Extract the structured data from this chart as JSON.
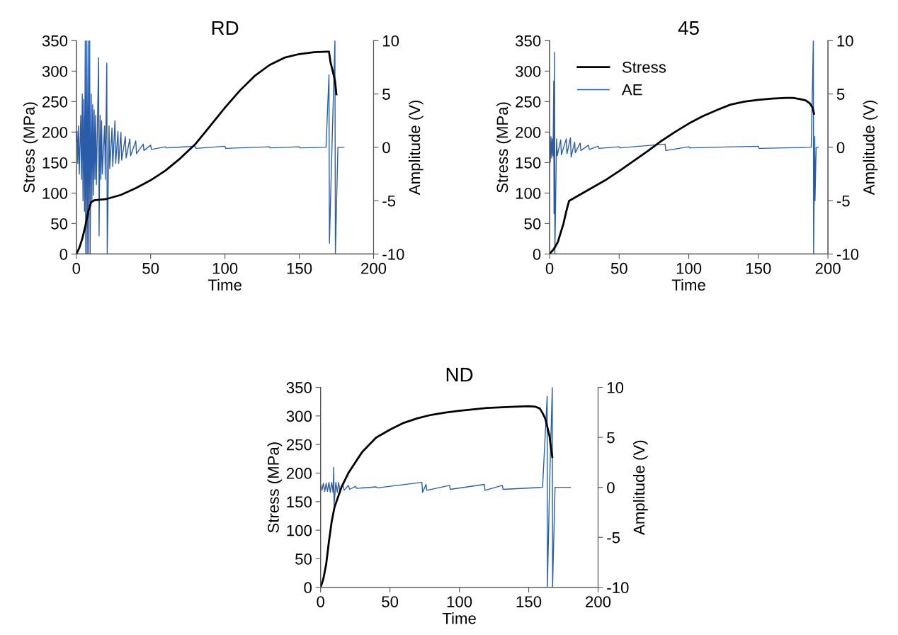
{
  "chart_data": [
    {
      "type": "line",
      "title": "RD",
      "xlabel": "Time",
      "ylabel": "Stress (MPa)",
      "y2label": "Amplitude (V)",
      "xlim": [
        0,
        200
      ],
      "xticks": [
        0,
        50,
        100,
        150,
        200
      ],
      "ylim": [
        0,
        350
      ],
      "yticks": [
        0,
        50,
        100,
        150,
        200,
        250,
        300,
        350
      ],
      "y2lim": [
        -10,
        10
      ],
      "y2ticks": [
        -10,
        -5,
        0,
        5,
        10
      ],
      "series": [
        {
          "color": "#000000",
          "x": [
            0,
            2,
            4,
            6,
            8,
            10,
            12,
            20,
            30,
            40,
            50,
            60,
            70,
            80,
            90,
            100,
            110,
            120,
            130,
            140,
            150,
            160,
            169,
            170,
            171,
            172,
            174,
            175
          ],
          "values": [
            0,
            10,
            25,
            45,
            70,
            85,
            88,
            90,
            97,
            108,
            121,
            137,
            157,
            180,
            210,
            240,
            268,
            292,
            310,
            322,
            328,
            331,
            332,
            332,
            315,
            305,
            285,
            262
          ]
        },
        {
          "color": "#2a5caa",
          "axis": "y2",
          "x": [
            0,
            0.5,
            1,
            1.5,
            2,
            3,
            3.5,
            4,
            4.5,
            5,
            5.5,
            6,
            6.3,
            7,
            7.3,
            8,
            8.3,
            9,
            9.3,
            10,
            10.5,
            11,
            11.5,
            12,
            12.5,
            13,
            13.5,
            15,
            15.3,
            16,
            16.5,
            17,
            17.5,
            19,
            19.5,
            20.5,
            20.8,
            22,
            22.5,
            24,
            24.5,
            26,
            26.5,
            28,
            28.5,
            30,
            30.5,
            33,
            33.5,
            36,
            36.5,
            40,
            40.5,
            45,
            45.5,
            50,
            50.5,
            60,
            60.5,
            80,
            80.5,
            100,
            100.5,
            130,
            130.5,
            150,
            150.5,
            168,
            170,
            170.3,
            172,
            174,
            174.3,
            176,
            180
          ],
          "values": [
            0.5,
            1.5,
            -1.5,
            2,
            -2.5,
            3,
            -3,
            5,
            -5,
            4.5,
            -6,
            10,
            -10,
            10,
            -10,
            10,
            -10,
            10,
            -10,
            5,
            -5,
            4,
            -4.5,
            3.5,
            -3,
            3,
            -3.5,
            8.4,
            -8.3,
            3,
            -3,
            2.5,
            -2.5,
            2,
            -3,
            7.9,
            -10,
            2,
            -2,
            1.8,
            -1.8,
            2.5,
            -1.5,
            1.5,
            -1.5,
            1.4,
            -1.2,
            1,
            -1,
            0.8,
            -0.8,
            0.6,
            -0.6,
            0.3,
            -0.3,
            0.2,
            -0.2,
            0.05,
            -0.05,
            0.1,
            -0.1,
            0.1,
            -0.1,
            0.05,
            -0.05,
            0.05,
            -0.05,
            0,
            6.8,
            -9,
            0,
            10,
            -10,
            0,
            0
          ]
        }
      ]
    },
    {
      "type": "line",
      "title": "45",
      "xlabel": "Time",
      "ylabel": "Stress (MPa)",
      "y2label": "Amplitude (V)",
      "xlim": [
        0,
        200
      ],
      "xticks": [
        0,
        50,
        100,
        150,
        200
      ],
      "ylim": [
        0,
        350
      ],
      "yticks": [
        0,
        50,
        100,
        150,
        200,
        250,
        300,
        350
      ],
      "y2lim": [
        -10,
        10
      ],
      "y2ticks": [
        -10,
        -5,
        0,
        5,
        10
      ],
      "legend": "top left",
      "series": [
        {
          "name": "Stress",
          "color": "#000000",
          "x": [
            0,
            3,
            6,
            10,
            12,
            14,
            20,
            30,
            40,
            50,
            60,
            70,
            80,
            90,
            100,
            110,
            120,
            130,
            140,
            150,
            160,
            170,
            175,
            180,
            184,
            187,
            189,
            190
          ],
          "values": [
            0,
            8,
            20,
            50,
            70,
            87,
            95,
            108,
            121,
            136,
            152,
            168,
            185,
            200,
            214,
            226,
            236,
            245,
            250,
            253,
            255,
            256,
            256,
            254,
            252,
            247,
            240,
            230
          ]
        },
        {
          "name": "AE",
          "color": "#2a5caa",
          "axis": "y2",
          "x": [
            0,
            0.5,
            1,
            1.5,
            2,
            2.5,
            3,
            3.2,
            3.6,
            3.8,
            5,
            5.5,
            8,
            8.5,
            12,
            12.5,
            15,
            15.5,
            18,
            18.5,
            22,
            22.5,
            28,
            28.5,
            35,
            35.5,
            50,
            50.5,
            83,
            83.5,
            100,
            100.5,
            150,
            150.5,
            188,
            189.5,
            189.7,
            190.5,
            190.7,
            191.5,
            193
          ],
          "values": [
            1.4,
            -1.4,
            1,
            -1,
            0.8,
            -0.8,
            6.2,
            -6.2,
            8.9,
            -10,
            0.8,
            -0.8,
            0.7,
            -0.7,
            0.8,
            -0.6,
            0.9,
            -0.9,
            0.5,
            -0.5,
            0.4,
            -0.3,
            0.2,
            -0.2,
            0.1,
            -0.1,
            0.05,
            -0.05,
            0.3,
            -0.3,
            0.05,
            -0.05,
            0.1,
            -0.1,
            0,
            10,
            -10,
            1,
            -5,
            0,
            0
          ]
        }
      ]
    },
    {
      "type": "line",
      "title": "ND",
      "xlabel": "Time",
      "ylabel": "Stress (MPa)",
      "y2label": "Amplitude (V)",
      "xlim": [
        0,
        200
      ],
      "xticks": [
        0,
        50,
        100,
        150,
        200
      ],
      "ylim": [
        0,
        350
      ],
      "yticks": [
        0,
        50,
        100,
        150,
        200,
        250,
        300,
        350
      ],
      "y2lim": [
        -10,
        10
      ],
      "y2ticks": [
        -10,
        -5,
        0,
        5,
        10
      ],
      "series": [
        {
          "color": "#000000",
          "x": [
            0,
            2,
            4,
            6,
            8,
            10,
            15,
            20,
            30,
            40,
            50,
            60,
            70,
            80,
            90,
            100,
            120,
            140,
            150,
            155,
            158,
            160,
            162,
            163,
            165,
            166,
            167
          ],
          "values": [
            0,
            15,
            40,
            80,
            115,
            140,
            175,
            200,
            237,
            262,
            276,
            288,
            296,
            302,
            306,
            309,
            314,
            316,
            317,
            316,
            313,
            305,
            295,
            285,
            265,
            245,
            228
          ]
        },
        {
          "color": "#2a5caa",
          "axis": "y2",
          "x": [
            0,
            1,
            2,
            3,
            4,
            5,
            6,
            7,
            8,
            9,
            9.5,
            9.7,
            11,
            12,
            13,
            14,
            16,
            17,
            20,
            21,
            25,
            26,
            40,
            41,
            73,
            73.5,
            76,
            76.5,
            93,
            93.5,
            118,
            118.5,
            131,
            131.5,
            160,
            163.3,
            163.5,
            165,
            167,
            167.2,
            169,
            180
          ],
          "values": [
            0.3,
            -0.3,
            0.4,
            -0.4,
            0.4,
            -0.4,
            0.5,
            -0.5,
            0.5,
            -0.5,
            2,
            -1.8,
            0.5,
            -0.5,
            0.5,
            -0.4,
            0.3,
            -0.3,
            0.2,
            -0.2,
            0.1,
            -0.1,
            0.05,
            -0.05,
            0.5,
            -0.5,
            0.3,
            -0.3,
            0.2,
            -0.2,
            0.3,
            -0.3,
            0.2,
            -0.2,
            0,
            9.1,
            -10,
            0,
            10,
            -10,
            0,
            0
          ]
        }
      ]
    }
  ]
}
